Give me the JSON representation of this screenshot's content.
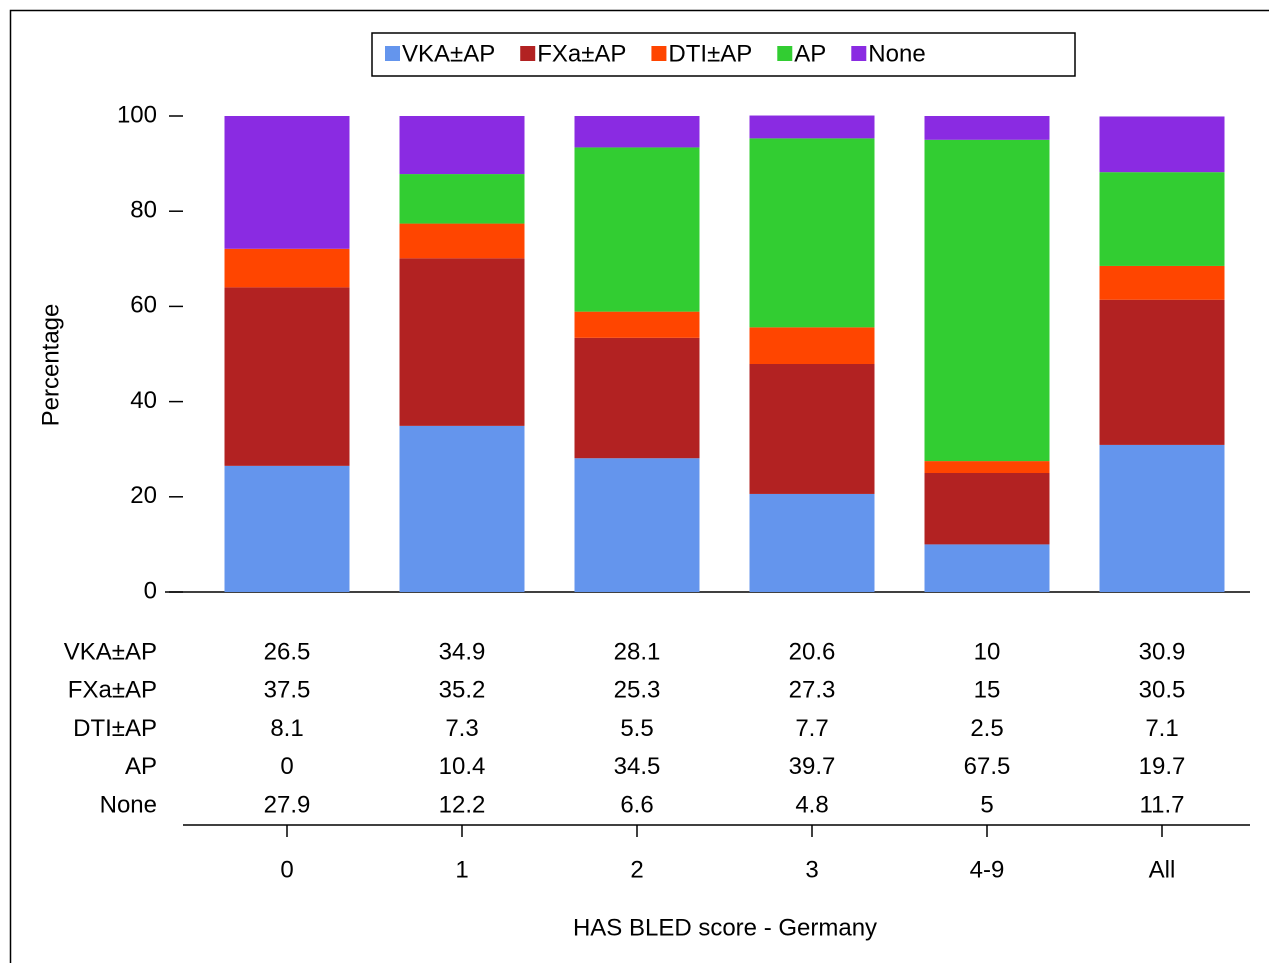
{
  "chart_data": {
    "type": "stacked-bar",
    "x_label": "HAS BLED score - Germany",
    "y_label": "Percentage",
    "categories": [
      "0",
      "1",
      "2",
      "3",
      "4-9",
      "All"
    ],
    "series": [
      {
        "name": "VKA±AP",
        "color": "#6495ed",
        "values": [
          26.5,
          34.9,
          28.1,
          20.6,
          10,
          30.9
        ]
      },
      {
        "name": "FXa±AP",
        "color": "#b22222",
        "values": [
          37.5,
          35.2,
          25.3,
          27.3,
          15,
          30.5
        ]
      },
      {
        "name": "DTI±AP",
        "color": "#ff4500",
        "values": [
          8.1,
          7.3,
          5.5,
          7.7,
          2.5,
          7.1
        ]
      },
      {
        "name": "AP",
        "color": "#32cd32",
        "values": [
          0,
          10.4,
          34.5,
          39.7,
          67.5,
          19.7
        ]
      },
      {
        "name": "None",
        "color": "#8a2be2",
        "values": [
          27.9,
          12.2,
          6.6,
          4.8,
          5,
          11.7
        ]
      }
    ],
    "ylim": [
      0,
      100
    ],
    "yticks": [
      0,
      20,
      40,
      60,
      80,
      100
    ],
    "legend": "top"
  }
}
